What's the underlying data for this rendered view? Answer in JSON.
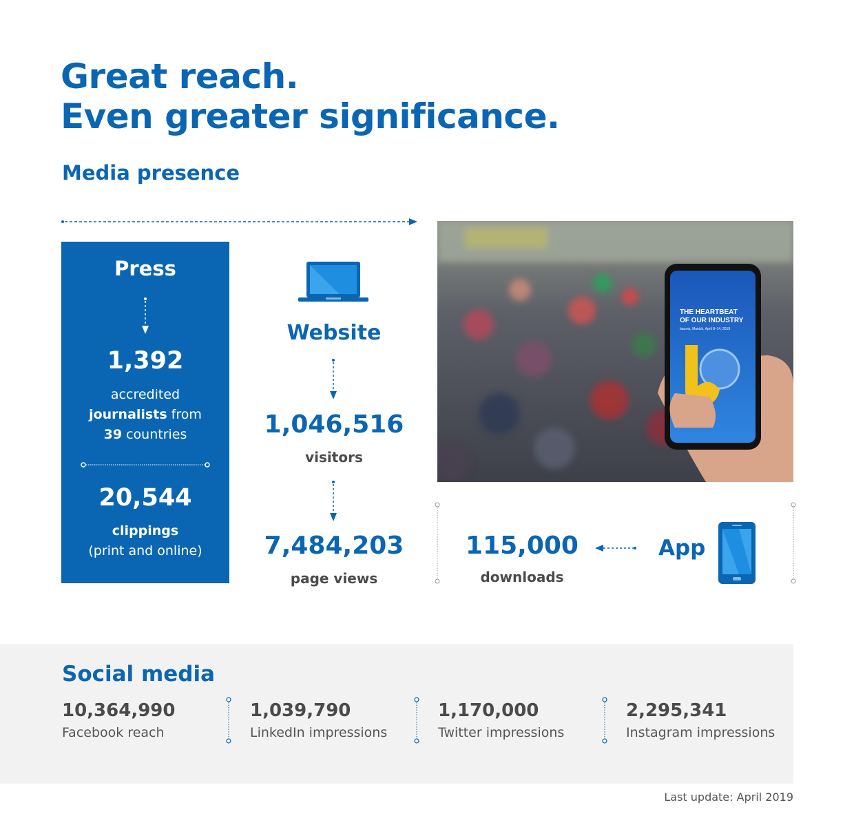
{
  "title_line1": "Great reach.",
  "title_line2": "Even greater significance.",
  "subtitle": "Media presence",
  "press": {
    "heading": "Press",
    "journalists_count": "1,392",
    "line1": "accredited",
    "line2_bold": "journalists",
    "line2_rest": " from",
    "line3_bold": "39",
    "line3_rest": " countries",
    "clippings_count": "20,544",
    "clippings_label": "clippings",
    "clippings_note": "(print and online)"
  },
  "website": {
    "heading": "Website",
    "visitors_count": "1,046,516",
    "visitors_label": "visitors",
    "pageviews_count": "7,484,203",
    "pageviews_label": "page views",
    "icon": "laptop-icon"
  },
  "photo": {
    "screen_line1": "THE HEARTBEAT",
    "screen_line2": "OF OUR INDUSTRY",
    "screen_line3": "bauma, Munich, April 8–14, 2019"
  },
  "app": {
    "heading": "App",
    "downloads_count": "115,000",
    "downloads_label": "downloads",
    "icon": "smartphone-icon"
  },
  "social": {
    "heading": "Social media",
    "stats": [
      {
        "value": "10,364,990",
        "label": "Facebook reach"
      },
      {
        "value": "1,039,790",
        "label": "LinkedIn impressions"
      },
      {
        "value": "1,170,000",
        "label": "Twitter impressions"
      },
      {
        "value": "2,295,341",
        "label": "Instagram impressions"
      }
    ]
  },
  "footer": "Last update: April 2019",
  "colors": {
    "brand_blue": "#0a66b3",
    "panel_grey": "#f2f2f2"
  }
}
